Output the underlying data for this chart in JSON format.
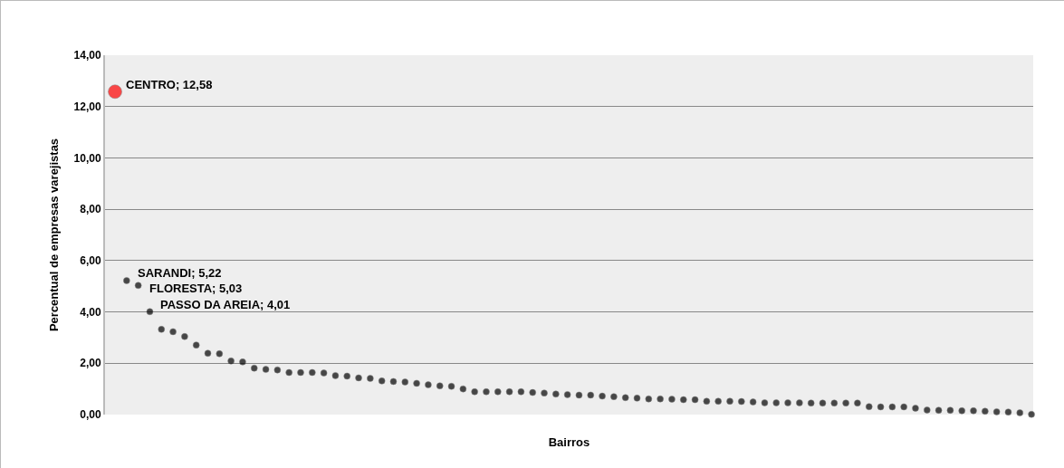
{
  "chart_data": {
    "type": "scatter",
    "xlabel": "Bairros",
    "ylabel": "Percentual de empresas varejistas",
    "categories": [
      null,
      null,
      null,
      null,
      null,
      null,
      null,
      null,
      null,
      null,
      null,
      null,
      null,
      null,
      null,
      null,
      null,
      null,
      null,
      null,
      null,
      null,
      null,
      null,
      null,
      null,
      null,
      null,
      null,
      null,
      null,
      null,
      null,
      null,
      null,
      null,
      null,
      null,
      null,
      null,
      null,
      null,
      null,
      null,
      null,
      null,
      null,
      null,
      null,
      null,
      null,
      null,
      null,
      null,
      null,
      null,
      null,
      null,
      null,
      null,
      null,
      null,
      null,
      null,
      null,
      null,
      null,
      null,
      null,
      null,
      null,
      null,
      null,
      null,
      null,
      null,
      null,
      null,
      null,
      null
    ],
    "series": [
      {
        "color": "#000000",
        "colors": [
          "#ff0000",
          "#000000",
          "#000000",
          "#000000",
          "#000000",
          "#000000",
          "#000000",
          "#000000",
          "#000000",
          "#000000",
          "#000000",
          "#000000",
          "#000000",
          "#000000",
          "#000000",
          "#000000",
          "#000000",
          "#000000",
          "#000000",
          "#000000",
          "#000000",
          "#000000",
          "#000000",
          "#000000",
          "#000000",
          "#000000",
          "#000000",
          "#000000",
          "#000000",
          "#000000",
          "#000000",
          "#000000",
          "#000000",
          "#000000",
          "#000000",
          "#000000",
          "#000000",
          "#000000",
          "#000000",
          "#000000",
          "#000000",
          "#000000",
          "#000000",
          "#000000",
          "#000000",
          "#000000",
          "#000000",
          "#000000",
          "#000000",
          "#000000",
          "#000000",
          "#000000",
          "#000000",
          "#000000",
          "#000000",
          "#000000",
          "#000000",
          "#000000",
          "#000000",
          "#000000",
          "#000000",
          "#000000",
          "#000000",
          "#000000",
          "#000000",
          "#000000",
          "#000000",
          "#000000",
          "#000000",
          "#000000",
          "#000000",
          "#000000",
          "#000000",
          "#000000",
          "#000000",
          "#000000",
          "#000000",
          "#000000",
          "#000000",
          "#000000"
        ],
        "values": [
          12.58,
          5.22,
          5.03,
          4.01,
          3.32,
          3.23,
          3.04,
          2.71,
          2.39,
          2.37,
          2.09,
          2.05,
          1.81,
          1.76,
          1.74,
          1.64,
          1.64,
          1.64,
          1.62,
          1.52,
          1.5,
          1.43,
          1.41,
          1.31,
          1.29,
          1.27,
          1.22,
          1.16,
          1.12,
          1.1,
          1.0,
          0.89,
          0.89,
          0.89,
          0.89,
          0.89,
          0.86,
          0.84,
          0.8,
          0.78,
          0.76,
          0.76,
          0.72,
          0.7,
          0.66,
          0.64,
          0.61,
          0.61,
          0.6,
          0.58,
          0.58,
          0.52,
          0.52,
          0.52,
          0.51,
          0.49,
          0.46,
          0.46,
          0.46,
          0.46,
          0.45,
          0.45,
          0.45,
          0.45,
          0.45,
          0.31,
          0.3,
          0.3,
          0.3,
          0.25,
          0.18,
          0.17,
          0.17,
          0.15,
          0.15,
          0.13,
          0.11,
          0.1,
          0.07,
          0.01
        ],
        "value_labels": [
          "CENTRO; 12,58",
          "SARANDI; 5,22",
          "FLORESTA; 5,03",
          "PASSO DA AREIA; 4,01",
          null,
          null,
          null,
          null,
          null,
          null,
          null,
          null,
          null,
          null,
          null,
          null,
          null,
          null,
          null,
          null,
          null,
          null,
          null,
          null,
          null,
          null,
          null,
          null,
          null,
          null,
          null,
          null,
          null,
          null,
          null,
          null,
          null,
          null,
          null,
          null,
          null,
          null,
          null,
          null,
          null,
          null,
          null,
          null,
          null,
          null,
          null,
          null,
          null,
          null,
          null,
          null,
          null,
          null,
          null,
          null,
          null,
          null,
          null,
          null,
          null,
          null,
          null,
          null,
          null,
          null,
          null,
          null,
          null,
          null,
          null,
          null,
          null,
          null,
          null,
          null
        ]
      }
    ],
    "ylim": [
      0,
      14
    ],
    "yticks": [
      {
        "value": 0,
        "label": "0,00"
      },
      {
        "value": 2,
        "label": "2,00"
      },
      {
        "value": 4,
        "label": "4,00"
      },
      {
        "value": 6,
        "label": "6,00"
      },
      {
        "value": 8,
        "label": "8,00"
      },
      {
        "value": 10,
        "label": "10,00"
      },
      {
        "value": 12,
        "label": "12,00"
      },
      {
        "value": 14,
        "label": "14,00"
      }
    ],
    "grid": "y",
    "marker": "circle",
    "legend": false
  }
}
